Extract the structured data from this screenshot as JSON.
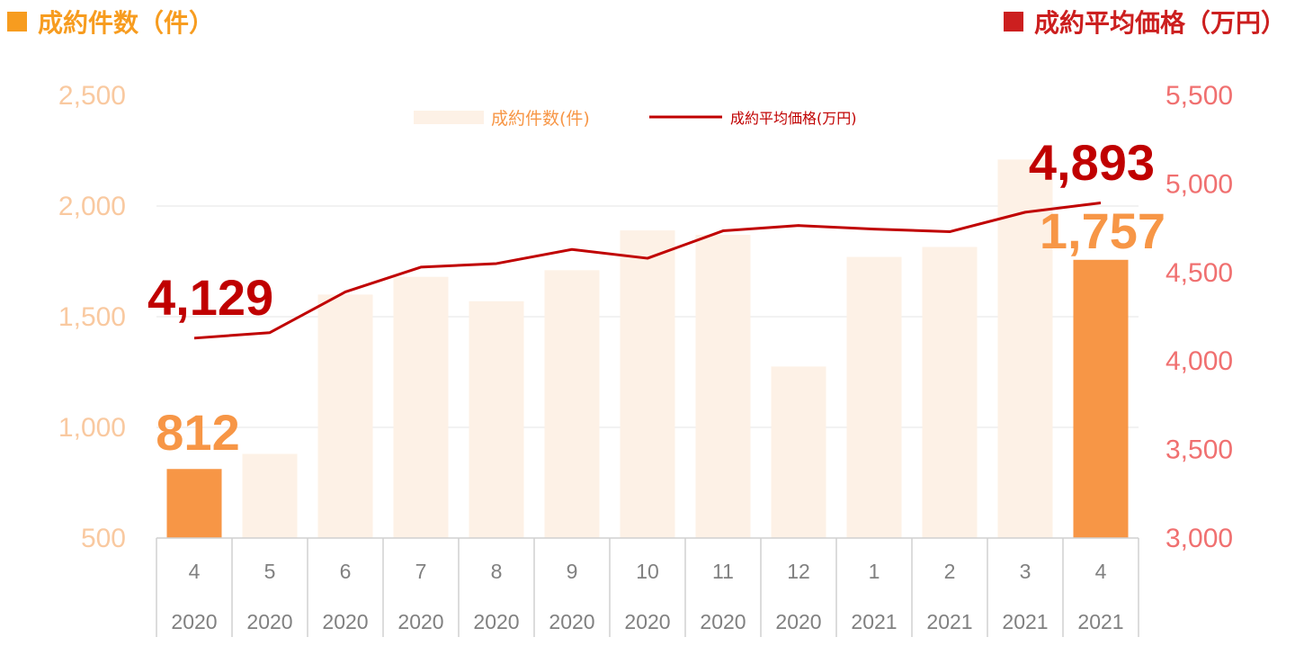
{
  "header": {
    "left_title": "成約件数（件）",
    "right_title": "成約平均価格（万円）"
  },
  "colors": {
    "bar_faded": "#fdf1e6",
    "bar_highlight": "#f79646",
    "line": "#c00000",
    "left_title": "#f79c1f",
    "right_title": "#cc1f1f",
    "left_axis_text": "#f9c9a0",
    "right_axis_text": "#f07070"
  },
  "chart_data": {
    "type": "bar",
    "categories": [
      {
        "month": "4",
        "year": "2020"
      },
      {
        "month": "5",
        "year": "2020"
      },
      {
        "month": "6",
        "year": "2020"
      },
      {
        "month": "7",
        "year": "2020"
      },
      {
        "month": "8",
        "year": "2020"
      },
      {
        "month": "9",
        "year": "2020"
      },
      {
        "month": "10",
        "year": "2020"
      },
      {
        "month": "11",
        "year": "2020"
      },
      {
        "month": "12",
        "year": "2020"
      },
      {
        "month": "1",
        "year": "2021"
      },
      {
        "month": "2",
        "year": "2021"
      },
      {
        "month": "3",
        "year": "2021"
      },
      {
        "month": "4",
        "year": "2021"
      }
    ],
    "series": [
      {
        "name": "成約件数(件)",
        "type": "bar",
        "axis": "left",
        "values": [
          812,
          880,
          1600,
          1680,
          1570,
          1710,
          1890,
          1870,
          1275,
          1770,
          1815,
          2210,
          1757
        ],
        "highlight_indices": [
          0,
          12
        ]
      },
      {
        "name": "成約平均価格(万円)",
        "type": "line",
        "axis": "right",
        "values": [
          4129,
          4160,
          4390,
          4530,
          4550,
          4630,
          4580,
          4735,
          4765,
          4745,
          4730,
          4840,
          4893
        ]
      }
    ],
    "left_axis": {
      "min": 500,
      "max": 2500,
      "ticks": [
        "2,500",
        "2,000",
        "1,500",
        "1,000",
        "500"
      ]
    },
    "right_axis": {
      "min": 3000,
      "max": 5500,
      "ticks": [
        "5,500",
        "5,000",
        "4,500",
        "4,000",
        "3,500",
        "3,000"
      ]
    },
    "annotations": {
      "bar_first": "812",
      "bar_last": "1,757",
      "line_first": "4,129",
      "line_last": "4,893"
    },
    "legend": {
      "position": "top-center"
    },
    "grid": true
  }
}
